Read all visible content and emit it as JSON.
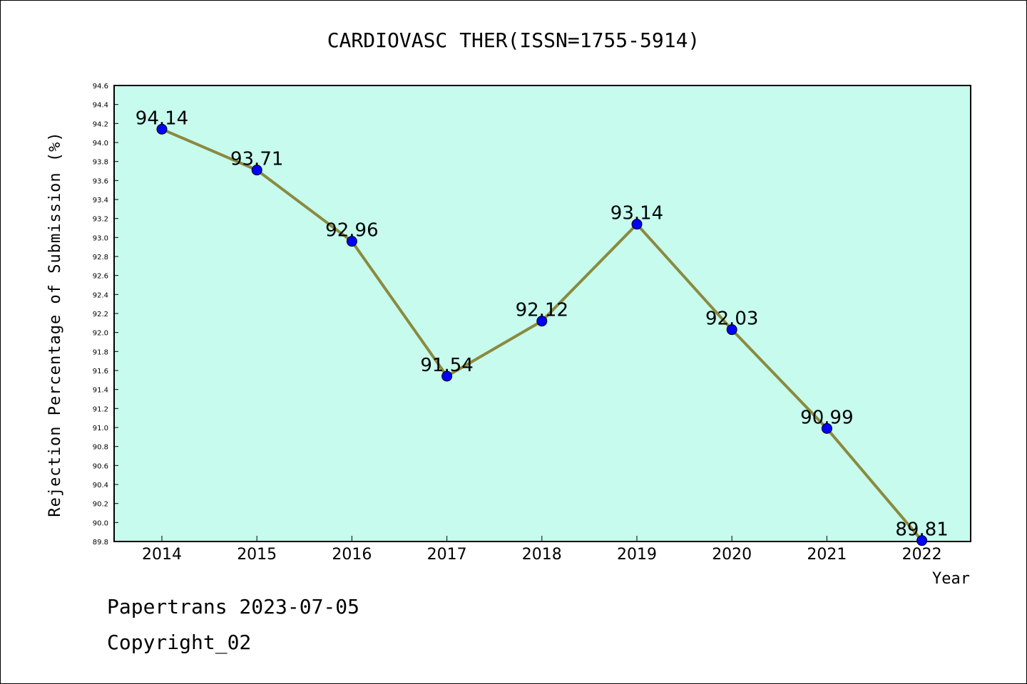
{
  "chart_data": {
    "type": "line",
    "title": "CARDIOVASC THER(ISSN=1755-5914)",
    "xlabel": "Year",
    "ylabel": "Rejection Percentage of Submission (%)",
    "categories": [
      "2014",
      "2015",
      "2016",
      "2017",
      "2018",
      "2019",
      "2020",
      "2021",
      "2022"
    ],
    "values": [
      94.14,
      93.71,
      92.96,
      91.54,
      92.12,
      93.14,
      92.03,
      90.99,
      89.81
    ],
    "data_labels": [
      "94.14",
      "93.71",
      "92.96",
      "91.54",
      "92.12",
      "93.14",
      "92.03",
      "90.99",
      "89.81"
    ],
    "ylim": [
      89.8,
      94.6
    ],
    "yticks": [
      "89.8",
      "90.0",
      "90.2",
      "90.4",
      "90.6",
      "90.8",
      "91.0",
      "91.2",
      "91.4",
      "91.6",
      "91.8",
      "92.0",
      "92.2",
      "92.4",
      "92.6",
      "92.8",
      "93.0",
      "93.2",
      "93.4",
      "93.6",
      "93.8",
      "94.0",
      "94.2",
      "94.4",
      "94.6"
    ],
    "grid": false,
    "colors": {
      "plot_background": "#c6fbee",
      "line": "#8b8a3e",
      "marker": "#0000ff"
    }
  },
  "footer": {
    "line1": "Papertrans 2023-07-05",
    "line2": "Copyright_02"
  }
}
